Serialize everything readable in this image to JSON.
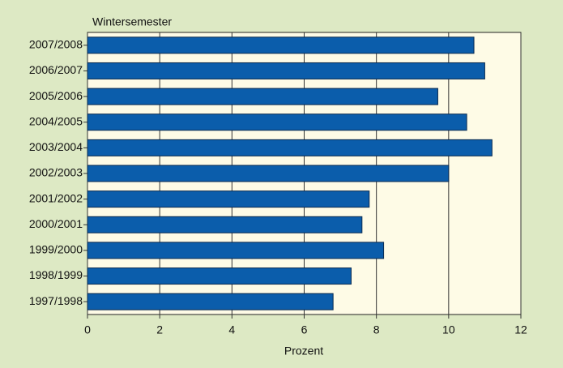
{
  "chart_data": {
    "type": "barh",
    "title": "Wintersemester",
    "xlabel": "Prozent",
    "categories": [
      "2007/2008",
      "2006/2007",
      "2005/2006",
      "2004/2005",
      "2003/2004",
      "2002/2003",
      "2001/2002",
      "2000/2001",
      "1999/2000",
      "1998/1999",
      "1997/1998"
    ],
    "values": [
      10.7,
      11.0,
      9.7,
      10.5,
      11.2,
      10.0,
      7.8,
      7.6,
      8.2,
      7.3,
      6.8
    ],
    "color": "#0b5dab",
    "xlim": [
      0,
      12
    ],
    "xticks": [
      0,
      2,
      4,
      6,
      8,
      10,
      12
    ],
    "grid": true
  }
}
